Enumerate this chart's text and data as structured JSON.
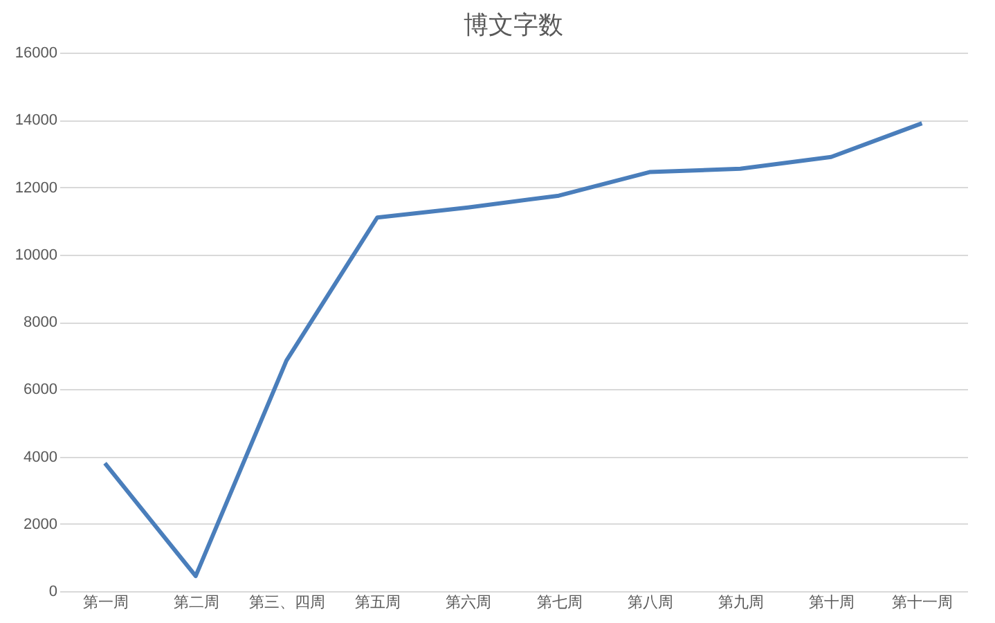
{
  "chart_data": {
    "type": "line",
    "title": "博文字数",
    "categories": [
      "第一周",
      "第二周",
      "第三、四周",
      "第五周",
      "第六周",
      "第七周",
      "第八周",
      "第九周",
      "第十周",
      "第十一周"
    ],
    "series": [
      {
        "color": "#4a7ebb",
        "values": [
          3800,
          450,
          6850,
          11100,
          11400,
          11750,
          12450,
          12550,
          12900,
          13900
        ]
      }
    ],
    "ylim": [
      0,
      16000
    ],
    "yticks": [
      0,
      2000,
      4000,
      6000,
      8000,
      10000,
      12000,
      14000,
      16000
    ],
    "grid": "y",
    "legend": false,
    "marker": "none",
    "line_style": "solid"
  }
}
